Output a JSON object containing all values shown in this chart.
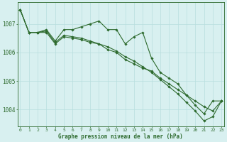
{
  "line1": [
    1007.5,
    1006.7,
    1006.7,
    1006.8,
    1006.4,
    1006.8,
    1006.8,
    1006.9,
    1007.0,
    1007.1,
    1006.8,
    1006.8,
    1006.3,
    1006.55,
    1006.7,
    1005.8,
    1005.3,
    1005.1,
    1004.9,
    1004.5,
    1004.15,
    1003.85,
    1004.3,
    1004.3
  ],
  "line2": [
    1007.5,
    1006.7,
    1006.7,
    1006.75,
    1006.35,
    1006.6,
    1006.55,
    1006.5,
    1006.4,
    1006.3,
    1006.1,
    1006.0,
    1005.75,
    1005.6,
    1005.45,
    1005.35,
    1005.1,
    1004.9,
    1004.7,
    1004.5,
    1004.3,
    1004.1,
    1003.95,
    1004.3
  ],
  "line3": [
    1007.5,
    1006.7,
    1006.7,
    1006.7,
    1006.3,
    1006.55,
    1006.5,
    1006.45,
    1006.35,
    1006.3,
    1006.2,
    1006.05,
    1005.85,
    1005.7,
    1005.5,
    1005.3,
    1005.05,
    1004.8,
    1004.55,
    1004.25,
    1003.95,
    1003.6,
    1003.75,
    1004.3
  ],
  "x": [
    0,
    1,
    2,
    3,
    4,
    5,
    6,
    7,
    8,
    9,
    10,
    11,
    12,
    13,
    14,
    15,
    16,
    17,
    18,
    19,
    20,
    21,
    22,
    23
  ],
  "ylim": [
    1003.4,
    1007.75
  ],
  "yticks": [
    1004,
    1005,
    1006,
    1007
  ],
  "xticks": [
    0,
    1,
    2,
    3,
    4,
    5,
    6,
    7,
    8,
    9,
    10,
    11,
    12,
    13,
    14,
    15,
    16,
    17,
    18,
    19,
    20,
    21,
    22,
    23
  ],
  "line_color": "#2d6a2d",
  "bg_color": "#d8f0f0",
  "grid_color": "#b8dede",
  "xlabel": "Graphe pression niveau de la mer (hPa)"
}
